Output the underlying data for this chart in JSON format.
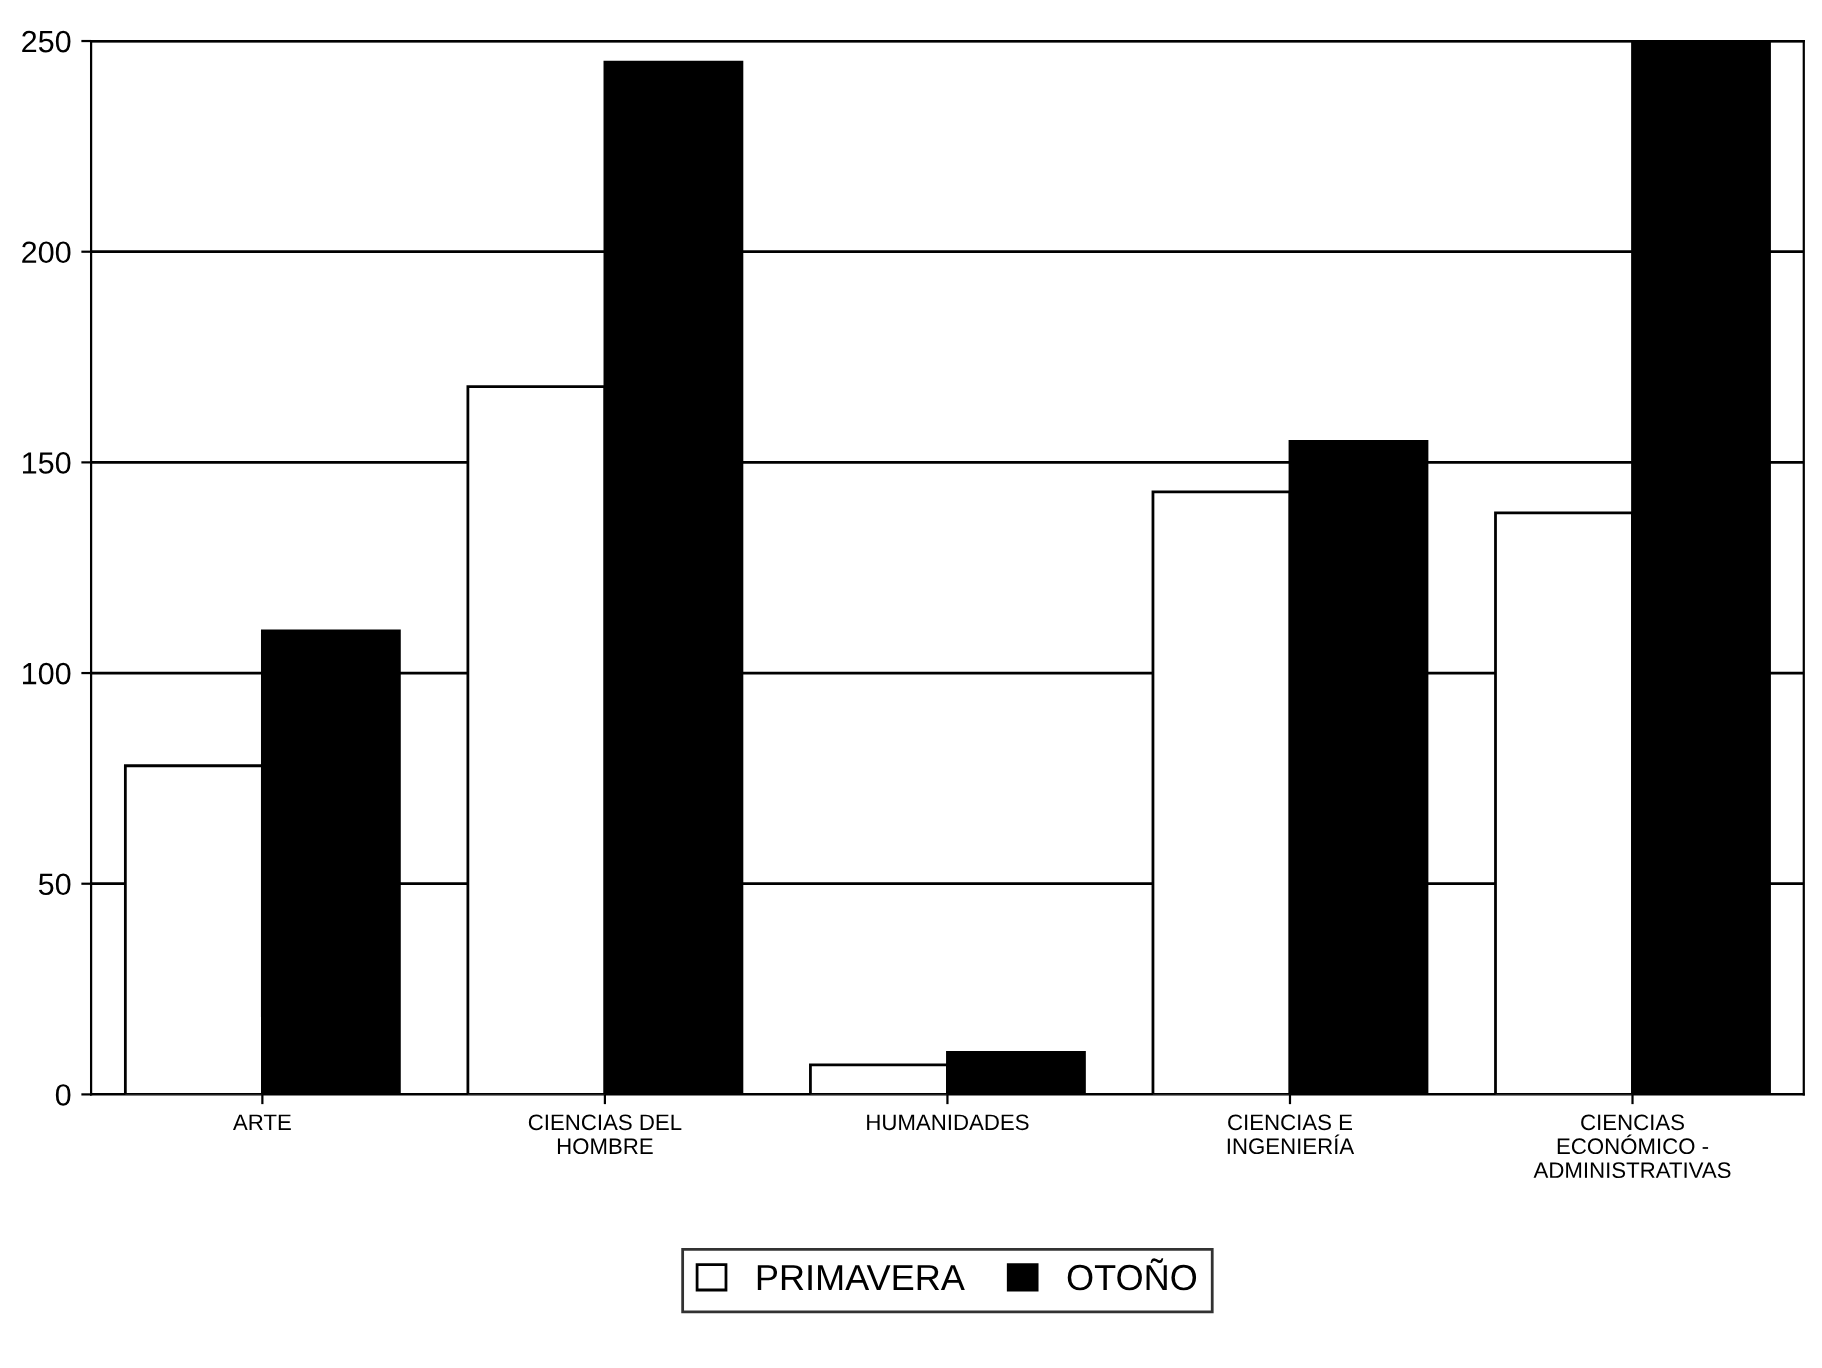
{
  "chart_data": {
    "type": "bar",
    "categories": [
      "ARTE",
      "CIENCIAS DEL\nHOMBRE",
      "HUMANIDADES",
      "CIENCIAS E\nINGENIERÍA",
      "CIENCIAS\nECONÓMICO -\nADMINISTRATIVAS"
    ],
    "series": [
      {
        "name": "PRIMAVERA",
        "color": "#ffffff",
        "values": [
          78,
          168,
          7,
          143,
          138
        ]
      },
      {
        "name": "OTOÑO",
        "color": "#000000",
        "values": [
          110,
          245,
          10,
          155,
          250
        ]
      }
    ],
    "ylim": [
      0,
      250
    ],
    "yticks": [
      0,
      50,
      100,
      150,
      200,
      250
    ],
    "grid": "y",
    "legend": "bottom"
  }
}
